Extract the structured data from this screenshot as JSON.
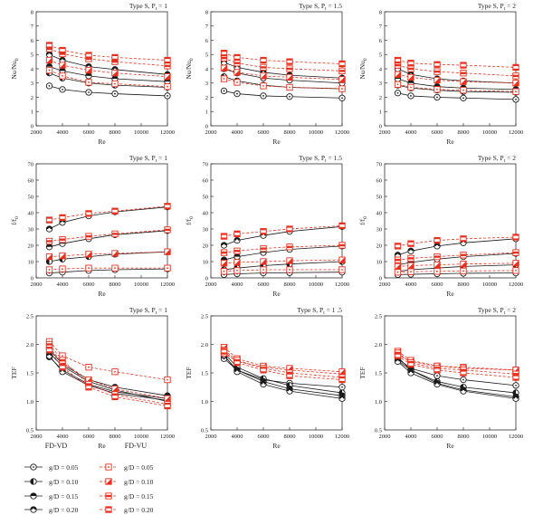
{
  "legend": {
    "left_title": "FD-VD",
    "right_title": "FD-VU",
    "entries": [
      "g/D = 0.05",
      "g/D = 0.10",
      "g/D = 0.15",
      "g/D = 0.20"
    ],
    "left_color": "#1a1a1a",
    "right_color": "#e8301f"
  },
  "chart_data": [
    {
      "type": "line",
      "title": "Type S, P_t = 1",
      "xlabel": "Re",
      "ylabel": "Nu/Nu0",
      "x": [
        3000,
        4000,
        6000,
        8000,
        12000
      ],
      "xlim": [
        2000,
        12000
      ],
      "ylim": [
        0,
        8
      ],
      "xticks": [
        "2000",
        "4000",
        "6000",
        "8000",
        "10000",
        "12000"
      ],
      "yticks": [
        "0",
        "1",
        "2",
        "3",
        "4",
        "5",
        "6",
        "7",
        "8"
      ],
      "series": [
        {
          "name": "FD-VD g/D = 0.05",
          "values": [
            2.8,
            2.55,
            2.35,
            2.25,
            2.1
          ]
        },
        {
          "name": "FD-VD g/D = 0.10",
          "values": [
            3.7,
            3.35,
            3.0,
            2.85,
            2.7
          ]
        },
        {
          "name": "FD-VD g/D = 0.15",
          "values": [
            4.15,
            3.85,
            3.5,
            3.3,
            3.1
          ]
        },
        {
          "name": "FD-VD g/D = 0.20",
          "values": [
            5.0,
            4.6,
            4.15,
            3.95,
            3.6
          ]
        },
        {
          "name": "FD-VU g/D = 0.05",
          "values": [
            3.9,
            3.5,
            3.05,
            2.95,
            2.75
          ]
        },
        {
          "name": "FD-VU g/D = 0.10",
          "values": [
            4.6,
            4.25,
            3.9,
            3.7,
            3.45
          ]
        },
        {
          "name": "FD-VU g/D = 0.15",
          "values": [
            5.4,
            5.05,
            4.7,
            4.5,
            4.2
          ]
        },
        {
          "name": "FD-VU g/D = 0.20",
          "values": [
            5.65,
            5.3,
            4.95,
            4.8,
            4.6
          ]
        }
      ]
    },
    {
      "type": "line",
      "title": "Type S, P_t = 1.5",
      "xlabel": "Re",
      "ylabel": "Nu/Nu0",
      "x": [
        3000,
        4000,
        6000,
        8000,
        12000
      ],
      "xlim": [
        2000,
        12000
      ],
      "ylim": [
        0,
        8
      ],
      "xticks": [
        "2000",
        "4000",
        "6000",
        "8000",
        "10000",
        "12000"
      ],
      "yticks": [
        "0",
        "1",
        "2",
        "3",
        "4",
        "5",
        "6",
        "7",
        "8"
      ],
      "series": [
        {
          "name": "FD-VD g/D = 0.05",
          "values": [
            2.45,
            2.25,
            2.1,
            2.05,
            1.95
          ]
        },
        {
          "name": "FD-VD g/D = 0.10",
          "values": [
            3.45,
            3.15,
            2.85,
            2.7,
            2.6
          ]
        },
        {
          "name": "FD-VD g/D = 0.15",
          "values": [
            4.0,
            3.7,
            3.35,
            3.2,
            3.0
          ]
        },
        {
          "name": "FD-VD g/D = 0.20",
          "values": [
            4.45,
            4.1,
            3.75,
            3.55,
            3.35
          ]
        },
        {
          "name": "FD-VU g/D = 0.05",
          "values": [
            3.3,
            3.05,
            2.8,
            2.7,
            2.6
          ]
        },
        {
          "name": "FD-VU g/D = 0.10",
          "values": [
            4.05,
            3.75,
            3.5,
            3.4,
            3.25
          ]
        },
        {
          "name": "FD-VU g/D = 0.15",
          "values": [
            4.75,
            4.4,
            4.1,
            4.0,
            3.85
          ]
        },
        {
          "name": "FD-VU g/D = 0.20",
          "values": [
            5.1,
            4.8,
            4.6,
            4.5,
            4.35
          ]
        }
      ]
    },
    {
      "type": "line",
      "title": "Type S, P_t = 2",
      "xlabel": "Re",
      "ylabel": "Nu/Nu0",
      "x": [
        3000,
        4000,
        6000,
        8000,
        12000
      ],
      "xlim": [
        2000,
        12000
      ],
      "ylim": [
        0,
        8
      ],
      "xticks": [
        "2000",
        "4000",
        "6000",
        "8000",
        "10000",
        "12000"
      ],
      "yticks": [
        "0",
        "1",
        "2",
        "3",
        "4",
        "5",
        "6",
        "7",
        "8"
      ],
      "series": [
        {
          "name": "FD-VD g/D = 0.05",
          "values": [
            2.3,
            2.1,
            2.0,
            1.95,
            1.85
          ]
        },
        {
          "name": "FD-VD g/D = 0.10",
          "values": [
            2.85,
            2.65,
            2.5,
            2.4,
            2.35
          ]
        },
        {
          "name": "FD-VD g/D = 0.15",
          "values": [
            3.3,
            3.0,
            2.75,
            2.65,
            2.55
          ]
        },
        {
          "name": "FD-VD g/D = 0.20",
          "values": [
            4.0,
            3.6,
            3.3,
            3.15,
            3.0
          ]
        },
        {
          "name": "FD-VU g/D = 0.05",
          "values": [
            2.9,
            2.7,
            2.55,
            2.5,
            2.4
          ]
        },
        {
          "name": "FD-VU g/D = 0.10",
          "values": [
            3.6,
            3.4,
            3.2,
            3.1,
            3.0
          ]
        },
        {
          "name": "FD-VU g/D = 0.15",
          "values": [
            4.25,
            4.0,
            3.8,
            3.7,
            3.5
          ]
        },
        {
          "name": "FD-VU g/D = 0.20",
          "values": [
            4.6,
            4.4,
            4.3,
            4.25,
            4.1
          ]
        }
      ]
    },
    {
      "type": "line",
      "title": "Type S, P_t = 1",
      "xlabel": "Re",
      "ylabel": "f/f0",
      "x": [
        3000,
        4000,
        6000,
        8000,
        12000
      ],
      "xlim": [
        2000,
        12000
      ],
      "ylim": [
        0,
        70
      ],
      "xticks": [
        "2000",
        "4000",
        "6000",
        "8000",
        "10000",
        "12000"
      ],
      "yticks": [
        "0",
        "10",
        "20",
        "30",
        "40",
        "50",
        "60",
        "70"
      ],
      "series": [
        {
          "name": "FD-VD g/D = 0.05",
          "values": [
            3,
            3.5,
            4.5,
            5,
            5.5
          ]
        },
        {
          "name": "FD-VD g/D = 0.10",
          "values": [
            10,
            11.5,
            13,
            14.5,
            16
          ]
        },
        {
          "name": "FD-VD g/D = 0.15",
          "values": [
            19,
            21,
            24,
            26.5,
            29
          ]
        },
        {
          "name": "FD-VD g/D = 0.20",
          "values": [
            30,
            34,
            38,
            40.5,
            43.5
          ]
        },
        {
          "name": "FD-VU g/D = 0.05",
          "values": [
            5,
            5.5,
            6,
            6,
            6
          ]
        },
        {
          "name": "FD-VU g/D = 0.10",
          "values": [
            13,
            13.5,
            14.5,
            15,
            16
          ]
        },
        {
          "name": "FD-VU g/D = 0.15",
          "values": [
            22.5,
            23.5,
            25.5,
            27,
            29.5
          ]
        },
        {
          "name": "FD-VU g/D = 0.20",
          "values": [
            35.5,
            37,
            39.5,
            41,
            44
          ]
        }
      ]
    },
    {
      "type": "line",
      "title": "Type S, P_t = 1.5",
      "xlabel": "Re",
      "ylabel": "f/f0",
      "x": [
        3000,
        4000,
        6000,
        8000,
        12000
      ],
      "xlim": [
        2000,
        12000
      ],
      "ylim": [
        0,
        70
      ],
      "xticks": [
        "2000",
        "4000",
        "6000",
        "8000",
        "10000",
        "12000"
      ],
      "yticks": [
        "0",
        "10",
        "20",
        "30",
        "40",
        "50",
        "60",
        "70"
      ],
      "series": [
        {
          "name": "FD-VD g/D = 0.05",
          "values": [
            2,
            2.5,
            3,
            3.2,
            3.5
          ]
        },
        {
          "name": "FD-VD g/D = 0.10",
          "values": [
            5,
            6,
            7.5,
            8.5,
            10
          ]
        },
        {
          "name": "FD-VD g/D = 0.15",
          "values": [
            11,
            13,
            15.5,
            17.5,
            19.5
          ]
        },
        {
          "name": "FD-VD g/D = 0.20",
          "values": [
            20,
            23,
            26,
            28.5,
            31.5
          ]
        },
        {
          "name": "FD-VU g/D = 0.05",
          "values": [
            4,
            4.5,
            5,
            5,
            5
          ]
        },
        {
          "name": "FD-VU g/D = 0.10",
          "values": [
            9,
            9.5,
            10,
            10.5,
            11
          ]
        },
        {
          "name": "FD-VU g/D = 0.15",
          "values": [
            15.5,
            16.5,
            18,
            19,
            20
          ]
        },
        {
          "name": "FD-VU g/D = 0.20",
          "values": [
            25.5,
            27,
            28.5,
            30,
            32
          ]
        }
      ]
    },
    {
      "type": "line",
      "title": "Type S, P_t = 2",
      "xlabel": "Re",
      "ylabel": "f/f0",
      "x": [
        3000,
        4000,
        6000,
        8000,
        12000
      ],
      "xlim": [
        2000,
        12000
      ],
      "ylim": [
        0,
        70
      ],
      "xticks": [
        "2000",
        "4000",
        "6000",
        "8000",
        "10000",
        "12000"
      ],
      "yticks": [
        "0",
        "10",
        "20",
        "30",
        "40",
        "50",
        "60",
        "70"
      ],
      "series": [
        {
          "name": "FD-VD g/D = 0.05",
          "values": [
            2,
            2.2,
            2.5,
            2.8,
            3
          ]
        },
        {
          "name": "FD-VD g/D = 0.10",
          "values": [
            4,
            5,
            6,
            7,
            8
          ]
        },
        {
          "name": "FD-VD g/D = 0.15",
          "values": [
            8,
            9.5,
            11.5,
            13,
            15
          ]
        },
        {
          "name": "FD-VD g/D = 0.20",
          "values": [
            14,
            16.5,
            19.5,
            21.5,
            24
          ]
        },
        {
          "name": "FD-VU g/D = 0.05",
          "values": [
            3.5,
            3.8,
            4,
            4.2,
            4.5
          ]
        },
        {
          "name": "FD-VU g/D = 0.10",
          "values": [
            7,
            7.5,
            8,
            8.5,
            9
          ]
        },
        {
          "name": "FD-VU g/D = 0.15",
          "values": [
            11,
            12,
            13,
            14,
            15.5
          ]
        },
        {
          "name": "FD-VU g/D = 0.20",
          "values": [
            19.5,
            21,
            23,
            24,
            25
          ]
        }
      ]
    },
    {
      "type": "line",
      "title": "Type S, P_t = 1",
      "xlabel": "Re",
      "ylabel": "TEF",
      "x": [
        3000,
        4000,
        6000,
        8000,
        12000
      ],
      "xlim": [
        2000,
        12000
      ],
      "ylim": [
        0.5,
        2.5
      ],
      "xticks": [
        "2000",
        "4000",
        "6000",
        "8000",
        "10000",
        "12000"
      ],
      "yticks": [
        "0.5",
        "1.0",
        "1.5",
        "2.0",
        "2.5"
      ],
      "series": [
        {
          "name": "FD-VD g/D = 0.05",
          "values": [
            1.85,
            1.62,
            1.35,
            1.2,
            1.0
          ]
        },
        {
          "name": "FD-VD g/D = 0.10",
          "values": [
            1.78,
            1.55,
            1.3,
            1.17,
            1.05
          ]
        },
        {
          "name": "FD-VD g/D = 0.15",
          "values": [
            1.92,
            1.65,
            1.38,
            1.25,
            1.1
          ]
        },
        {
          "name": "FD-VD g/D = 0.20",
          "values": [
            1.8,
            1.52,
            1.28,
            1.14,
            1.02
          ]
        },
        {
          "name": "FD-VU g/D = 0.05",
          "values": [
            2.05,
            1.8,
            1.6,
            1.52,
            1.38
          ]
        },
        {
          "name": "FD-VU g/D = 0.10",
          "values": [
            1.95,
            1.68,
            1.38,
            1.22,
            1.05
          ]
        },
        {
          "name": "FD-VU g/D = 0.15",
          "values": [
            2.0,
            1.72,
            1.3,
            1.12,
            0.95
          ]
        },
        {
          "name": "FD-VU g/D = 0.20",
          "values": [
            1.9,
            1.6,
            1.25,
            1.08,
            0.92
          ]
        }
      ]
    },
    {
      "type": "line",
      "title": "Type S, P_t = 1 .5",
      "xlabel": "Re",
      "ylabel": "TEF",
      "x": [
        3000,
        4000,
        6000,
        8000,
        12000
      ],
      "xlim": [
        2000,
        12000
      ],
      "ylim": [
        0.5,
        2.5
      ],
      "xticks": [
        "2000",
        "4000",
        "6000",
        "8000",
        "10000",
        "12000"
      ],
      "yticks": [
        "0.5",
        "1.0",
        "1.5",
        "2.0",
        "2.5"
      ],
      "series": [
        {
          "name": "FD-VD g/D = 0.05",
          "values": [
            1.75,
            1.55,
            1.38,
            1.32,
            1.25
          ]
        },
        {
          "name": "FD-VD g/D = 0.10",
          "values": [
            1.85,
            1.6,
            1.4,
            1.28,
            1.15
          ]
        },
        {
          "name": "FD-VD g/D = 0.15",
          "values": [
            1.8,
            1.55,
            1.35,
            1.22,
            1.1
          ]
        },
        {
          "name": "FD-VD g/D = 0.20",
          "values": [
            1.82,
            1.52,
            1.3,
            1.18,
            1.05
          ]
        },
        {
          "name": "FD-VU g/D = 0.05",
          "values": [
            1.85,
            1.7,
            1.6,
            1.55,
            1.48
          ]
        },
        {
          "name": "FD-VU g/D = 0.10",
          "values": [
            1.95,
            1.75,
            1.62,
            1.58,
            1.52
          ]
        },
        {
          "name": "FD-VU g/D = 0.15",
          "values": [
            1.9,
            1.72,
            1.58,
            1.5,
            1.42
          ]
        },
        {
          "name": "FD-VU g/D = 0.20",
          "values": [
            1.88,
            1.68,
            1.55,
            1.45,
            1.38
          ]
        }
      ]
    },
    {
      "type": "line",
      "title": "Type S, P_t = 2",
      "xlabel": "Re",
      "ylabel": "TEF",
      "x": [
        3000,
        4000,
        6000,
        8000,
        12000
      ],
      "xlim": [
        2000,
        12000
      ],
      "ylim": [
        0.5,
        2.5
      ],
      "xticks": [
        "2000",
        "4000",
        "6000",
        "8000",
        "10000",
        "12000"
      ],
      "yticks": [
        "0.5",
        "1.0",
        "1.5",
        "2.0",
        "2.5"
      ],
      "series": [
        {
          "name": "FD-VD g/D = 0.05",
          "values": [
            1.75,
            1.58,
            1.45,
            1.38,
            1.28
          ]
        },
        {
          "name": "FD-VD g/D = 0.10",
          "values": [
            1.72,
            1.55,
            1.35,
            1.25,
            1.15
          ]
        },
        {
          "name": "FD-VD g/D = 0.15",
          "values": [
            1.78,
            1.55,
            1.32,
            1.2,
            1.08
          ]
        },
        {
          "name": "FD-VD g/D = 0.20",
          "values": [
            1.7,
            1.5,
            1.3,
            1.18,
            1.05
          ]
        },
        {
          "name": "FD-VU g/D = 0.05",
          "values": [
            1.82,
            1.7,
            1.62,
            1.6,
            1.55
          ]
        },
        {
          "name": "FD-VU g/D = 0.10",
          "values": [
            1.88,
            1.72,
            1.62,
            1.58,
            1.55
          ]
        },
        {
          "name": "FD-VU g/D = 0.15",
          "values": [
            1.85,
            1.68,
            1.58,
            1.55,
            1.48
          ]
        },
        {
          "name": "FD-VU g/D = 0.20",
          "values": [
            1.8,
            1.65,
            1.55,
            1.5,
            1.42
          ]
        }
      ]
    }
  ]
}
